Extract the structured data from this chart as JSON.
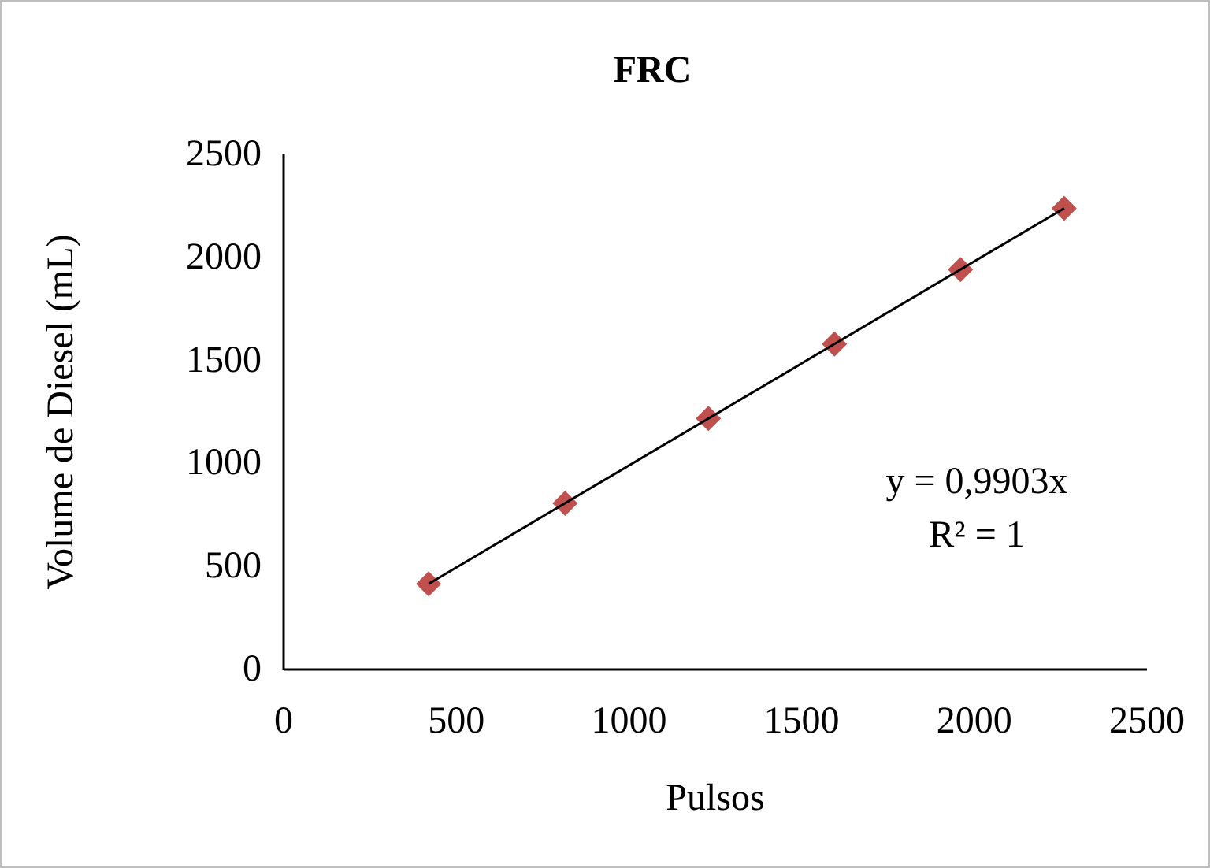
{
  "chart_data": {
    "type": "scatter",
    "title": "FRC",
    "xlabel": "Pulsos",
    "ylabel": "Volume de Diesel (mL)",
    "x": [
      420,
      815,
      1230,
      1595,
      1960,
      2260
    ],
    "series": [
      {
        "color": "#c0504d",
        "marker": "diamond",
        "values": [
          416,
          807,
          1218,
          1580,
          1941,
          2238
        ]
      },
      {
        "type": "line",
        "color": "#000000",
        "x": [
          420,
          2260
        ],
        "values": [
          416,
          2238
        ],
        "line_style": "solid",
        "marker": "none"
      }
    ],
    "annotations": [
      "y = 0,9903x",
      "R² = 1"
    ],
    "xlim": [
      0,
      2500
    ],
    "xticks": [
      0,
      500,
      1000,
      1500,
      2000,
      2500
    ],
    "ylim": [
      0,
      2500
    ],
    "yticks": [
      0,
      500,
      1000,
      1500,
      2000,
      2500
    ],
    "grid": false
  }
}
